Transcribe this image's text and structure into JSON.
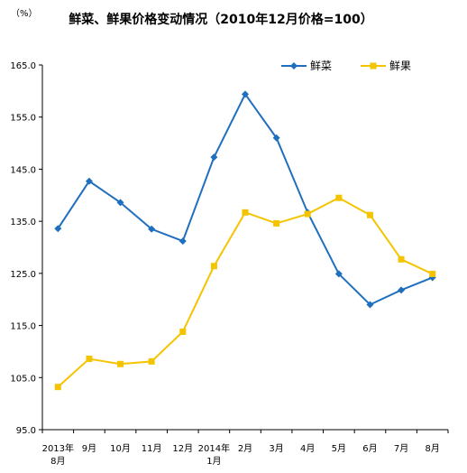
{
  "chart_data": {
    "type": "line",
    "title": "鲜菜、鲜果价格变动情况（2010年12月价格=100）",
    "unit_label": "（%）",
    "xlabel": "",
    "ylabel": "",
    "categories": [
      [
        "2013年",
        "8月"
      ],
      [
        "9月"
      ],
      [
        "10月"
      ],
      [
        "11月"
      ],
      [
        "12月"
      ],
      [
        "2014年",
        "1月"
      ],
      [
        "2月"
      ],
      [
        "3月"
      ],
      [
        "4月"
      ],
      [
        "5月"
      ],
      [
        "6月"
      ],
      [
        "7月"
      ],
      [
        "8月"
      ]
    ],
    "ylim": [
      95,
      165
    ],
    "yticks": [
      "95.0",
      "105.0",
      "115.0",
      "125.0",
      "135.0",
      "145.0",
      "155.0",
      "165.0"
    ],
    "grid": false,
    "legend_position": "top-right",
    "series": [
      {
        "name": "鲜菜",
        "color": "#1f6fbf",
        "marker": "diamond",
        "values": [
          133.6,
          142.7,
          138.6,
          133.5,
          131.2,
          147.3,
          159.4,
          151.0,
          136.7,
          124.9,
          119.0,
          121.8,
          124.2
        ]
      },
      {
        "name": "鲜果",
        "color": "#f5c400",
        "marker": "square",
        "values": [
          103.2,
          108.6,
          107.6,
          108.1,
          113.8,
          126.4,
          136.7,
          134.6,
          136.4,
          139.5,
          136.2,
          127.7,
          124.9
        ]
      }
    ]
  }
}
